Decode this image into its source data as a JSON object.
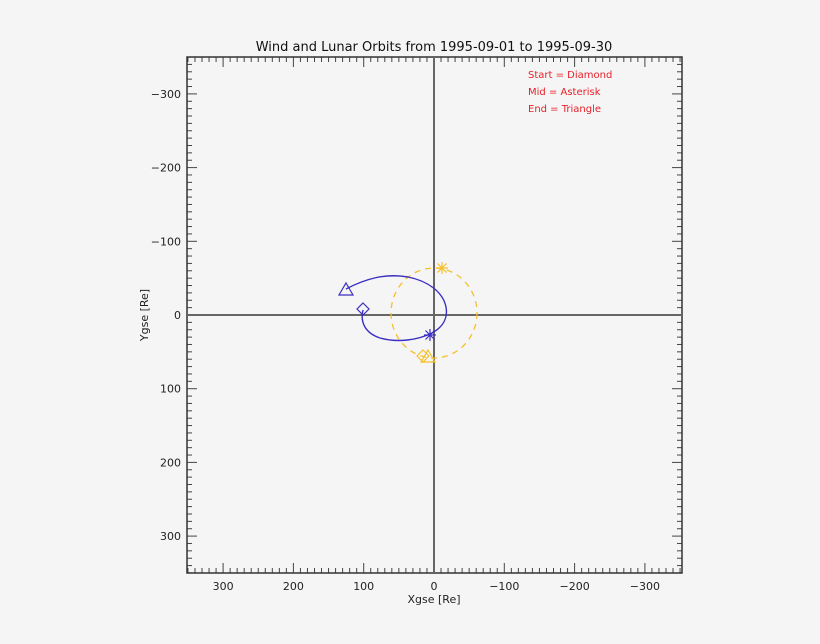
{
  "chart_data": {
    "type": "line",
    "title": "Wind and Lunar Orbits from 1995-09-01 to 1995-09-30",
    "xlabel": "Xgse [Re]",
    "ylabel": "Ygse [Re]",
    "xlim": [
      350,
      -350
    ],
    "ylim": [
      -350,
      350
    ],
    "x_reversed": true,
    "y_reversed": true,
    "xticks": [
      300,
      200,
      100,
      0,
      -100,
      -200,
      -300
    ],
    "xtick_labels": [
      "300",
      "200",
      "100",
      "0",
      "−100",
      "−200",
      "−300"
    ],
    "yticks": [
      -300,
      -200,
      -100,
      0,
      100,
      200,
      300
    ],
    "ytick_labels": [
      "−300",
      "−200",
      "−100",
      "0",
      "100",
      "200",
      "300"
    ],
    "grid": false,
    "zero_lines": true,
    "legend": {
      "position": "upper-right",
      "entries": [
        "Start = Diamond",
        "Mid = Asterisk",
        "End = Triangle"
      ],
      "color": "#e8202a"
    },
    "series": [
      {
        "name": "Wind",
        "color": "#3a2fc0",
        "style": "solid",
        "points": [
          [
            102,
            8
          ],
          [
            100,
            22
          ],
          [
            90,
            32
          ],
          [
            70,
            37
          ],
          [
            45,
            36
          ],
          [
            15,
            29
          ],
          [
            5,
            24
          ],
          [
            -5,
            12
          ],
          [
            -15,
            -2
          ],
          [
            -12,
            -20
          ],
          [
            0,
            -35
          ],
          [
            20,
            -47
          ],
          [
            45,
            -52
          ],
          [
            70,
            -51
          ],
          [
            95,
            -44
          ],
          [
            125,
            -35
          ]
        ],
        "start": [
          102,
          8
        ],
        "mid": [
          5,
          27
        ],
        "end": [
          125,
          -35
        ]
      },
      {
        "name": "Moon",
        "color": "#f5c02a",
        "style": "dashed",
        "points": [
          [
            0,
            -60
          ],
          [
            -30,
            -50
          ],
          [
            -50,
            -25
          ],
          [
            -58,
            0
          ],
          [
            -52,
            30
          ],
          [
            -30,
            50
          ],
          [
            0,
            60
          ],
          [
            20,
            58
          ],
          [
            40,
            40
          ],
          [
            55,
            15
          ],
          [
            58,
            -10
          ],
          [
            48,
            -35
          ],
          [
            25,
            -52
          ],
          [
            0,
            -60
          ]
        ],
        "start": [
          15,
          56
        ],
        "mid": [
          -10,
          -62
        ],
        "end": [
          8,
          60
        ]
      }
    ]
  }
}
